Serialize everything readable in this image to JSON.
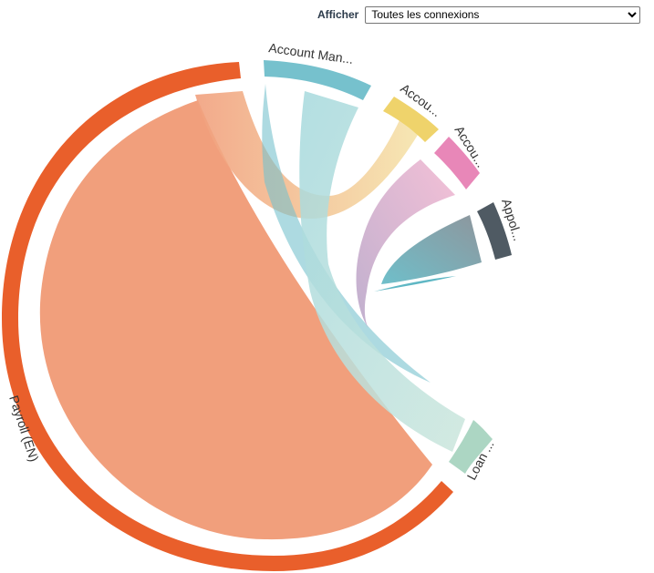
{
  "filter": {
    "label": "Afficher",
    "selected": "Toutes les connexions"
  },
  "chart_data": {
    "type": "chord",
    "groups": [
      {
        "name": "Payroll (EN)",
        "label": "Payroll (EN)",
        "color": "#e95f2b",
        "share": 0.775
      },
      {
        "name": "Account Man...",
        "label": "Account Man...",
        "color": "#76c1cd",
        "share": 0.082
      },
      {
        "name": "Accou...",
        "label": "Accou...",
        "color": "#efd36b",
        "share": 0.032
      },
      {
        "name": "Accou...",
        "label": "Accou...",
        "color": "#e887b8",
        "share": 0.026
      },
      {
        "name": "Appol...",
        "label": "Appol...",
        "color": "#4f5a63",
        "share": 0.026
      },
      {
        "name": "Loan ...",
        "label": "Loan ...",
        "color": "#acd6c3",
        "share": 0.058
      }
    ],
    "chords": [
      {
        "source": 0,
        "target": 0
      },
      {
        "source": 0,
        "target": 2
      },
      {
        "source": 1,
        "target": 1
      },
      {
        "source": 1,
        "target": 5
      },
      {
        "source": 3,
        "target": 3
      },
      {
        "source": 4,
        "target": 1
      }
    ]
  }
}
